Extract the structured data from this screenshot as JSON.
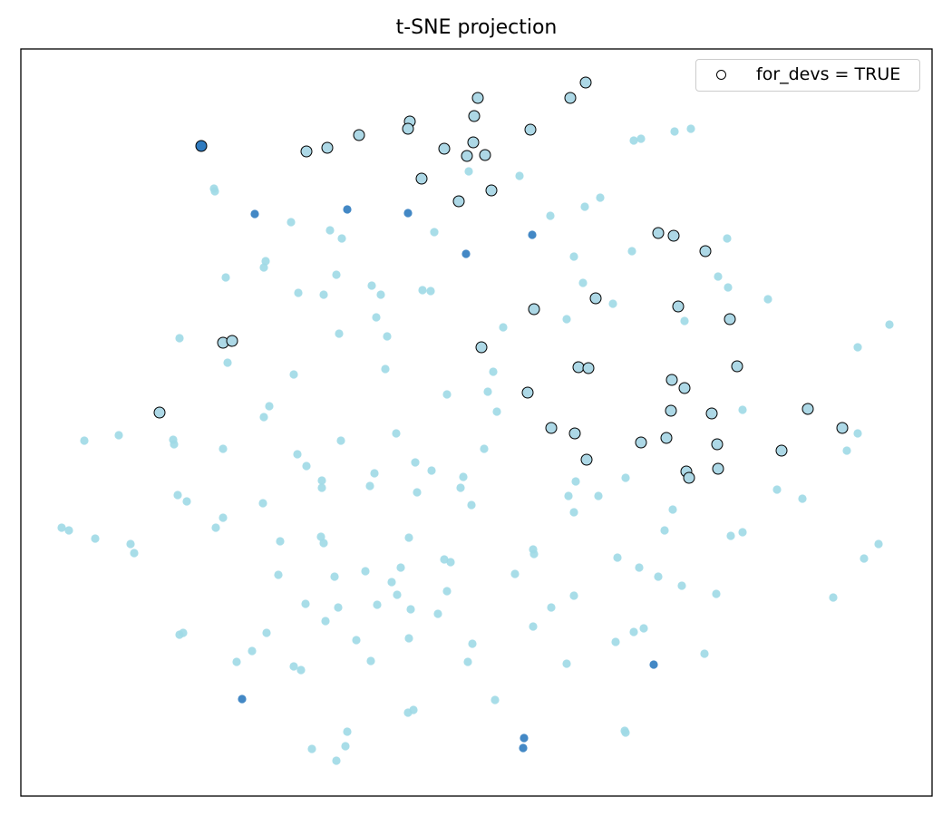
{
  "chart_data": {
    "type": "scatter",
    "title": "t-SNE projection",
    "xlabel": "",
    "ylabel": "",
    "xlim": [
      -50.2,
      50.3
    ],
    "ylim": [
      -41.2,
      41.2
    ],
    "grid": false,
    "ticks_visible": false,
    "legend": {
      "placement": "top-right",
      "entries": [
        "for_devs = TRUE"
      ]
    },
    "colors": {
      "light": "#9ed9e6",
      "dark": "#2f7bbf",
      "highlight_fill": "#add8e6",
      "highlight_edge": "#000000"
    },
    "series": [
      {
        "group": "light",
        "points": [
          [
            17.4,
            31.1
          ],
          [
            18.2,
            31.3
          ],
          [
            21.9,
            32.1
          ],
          [
            23.7,
            32.4
          ],
          [
            -28.9,
            25.8
          ],
          [
            -28.8,
            25.5
          ],
          [
            -0.8,
            27.7
          ],
          [
            4.8,
            27.2
          ],
          [
            13.7,
            24.8
          ],
          [
            12.0,
            23.8
          ],
          [
            8.2,
            22.8
          ],
          [
            -20.4,
            22.1
          ],
          [
            -16.1,
            21.2
          ],
          [
            -14.8,
            20.3
          ],
          [
            -4.6,
            21.0
          ],
          [
            27.7,
            20.3
          ],
          [
            17.2,
            18.9
          ],
          [
            10.8,
            18.3
          ],
          [
            -23.2,
            17.8
          ],
          [
            -23.4,
            17.1
          ],
          [
            -27.6,
            16.0
          ],
          [
            -15.4,
            16.3
          ],
          [
            26.7,
            16.1
          ],
          [
            27.8,
            14.9
          ],
          [
            -11.5,
            15.1
          ],
          [
            -10.5,
            14.1
          ],
          [
            -5.9,
            14.6
          ],
          [
            -5.0,
            14.5
          ],
          [
            -19.6,
            14.3
          ],
          [
            -16.8,
            14.1
          ],
          [
            11.8,
            15.4
          ],
          [
            15.1,
            13.1
          ],
          [
            32.2,
            13.6
          ],
          [
            -11.0,
            11.6
          ],
          [
            10.0,
            11.4
          ],
          [
            23.0,
            11.2
          ],
          [
            3.0,
            10.5
          ],
          [
            45.6,
            10.8
          ],
          [
            -32.7,
            9.3
          ],
          [
            -15.1,
            9.8
          ],
          [
            -9.8,
            9.5
          ],
          [
            42.1,
            8.3
          ],
          [
            -27.4,
            6.6
          ],
          [
            -20.1,
            5.3
          ],
          [
            -10.0,
            5.9
          ],
          [
            1.9,
            5.6
          ],
          [
            -3.2,
            3.1
          ],
          [
            1.3,
            3.4
          ],
          [
            -22.8,
            1.8
          ],
          [
            -23.4,
            0.6
          ],
          [
            2.3,
            1.2
          ],
          [
            29.4,
            1.4
          ],
          [
            -43.2,
            -2.0
          ],
          [
            -39.4,
            -1.4
          ],
          [
            -33.4,
            -1.9
          ],
          [
            -33.3,
            -2.4
          ],
          [
            -14.9,
            -2.0
          ],
          [
            -8.8,
            -1.2
          ],
          [
            42.1,
            -1.2
          ],
          [
            -27.9,
            -2.9
          ],
          [
            -19.7,
            -3.5
          ],
          [
            0.9,
            -2.9
          ],
          [
            40.9,
            -3.1
          ],
          [
            -18.7,
            -4.8
          ],
          [
            -6.7,
            -4.4
          ],
          [
            -4.9,
            -5.3
          ],
          [
            -17.0,
            -6.4
          ],
          [
            -17.0,
            -7.2
          ],
          [
            -11.2,
            -5.6
          ],
          [
            -11.7,
            -7.0
          ],
          [
            -1.4,
            -6.0
          ],
          [
            -1.7,
            -7.2
          ],
          [
            11.0,
            -6.5
          ],
          [
            16.5,
            -6.1
          ],
          [
            33.2,
            -7.4
          ],
          [
            -32.9,
            -8.0
          ],
          [
            -31.9,
            -8.7
          ],
          [
            -6.5,
            -7.7
          ],
          [
            10.2,
            -8.1
          ],
          [
            13.5,
            -8.1
          ],
          [
            36.0,
            -8.4
          ],
          [
            -23.5,
            -8.9
          ],
          [
            -0.5,
            -9.1
          ],
          [
            -27.9,
            -10.5
          ],
          [
            21.7,
            -9.6
          ],
          [
            10.8,
            -9.9
          ],
          [
            -28.7,
            -11.6
          ],
          [
            -45.7,
            -11.6
          ],
          [
            -44.9,
            -11.9
          ],
          [
            -42.0,
            -12.8
          ],
          [
            -38.1,
            -13.4
          ],
          [
            -37.7,
            -14.4
          ],
          [
            -21.6,
            -13.1
          ],
          [
            -17.1,
            -12.6
          ],
          [
            -16.8,
            -13.3
          ],
          [
            -7.4,
            -12.7
          ],
          [
            20.8,
            -11.9
          ],
          [
            28.1,
            -12.5
          ],
          [
            29.4,
            -12.1
          ],
          [
            44.4,
            -13.4
          ],
          [
            6.3,
            -14.0
          ],
          [
            6.4,
            -14.5
          ],
          [
            -3.5,
            -15.1
          ],
          [
            -2.8,
            -15.4
          ],
          [
            15.6,
            -14.9
          ],
          [
            18.0,
            -16.0
          ],
          [
            42.8,
            -15.0
          ],
          [
            -21.8,
            -16.8
          ],
          [
            -12.2,
            -16.4
          ],
          [
            -15.6,
            -17.0
          ],
          [
            -8.3,
            -16.0
          ],
          [
            -9.3,
            -17.6
          ],
          [
            4.3,
            -16.7
          ],
          [
            20.1,
            -17.0
          ],
          [
            22.7,
            -18.0
          ],
          [
            -3.2,
            -18.6
          ],
          [
            -8.7,
            -19.0
          ],
          [
            10.8,
            -19.1
          ],
          [
            26.5,
            -18.9
          ],
          [
            -18.8,
            -20.0
          ],
          [
            -15.2,
            -20.4
          ],
          [
            -10.9,
            -20.1
          ],
          [
            -7.2,
            -20.6
          ],
          [
            -4.2,
            -21.1
          ],
          [
            8.3,
            -20.4
          ],
          [
            39.4,
            -19.3
          ],
          [
            -16.6,
            -21.9
          ],
          [
            6.3,
            -22.5
          ],
          [
            18.5,
            -22.7
          ],
          [
            17.4,
            -23.1
          ],
          [
            -32.7,
            -23.4
          ],
          [
            -32.3,
            -23.2
          ],
          [
            -23.1,
            -23.2
          ],
          [
            -13.2,
            -24.0
          ],
          [
            -7.4,
            -23.8
          ],
          [
            -0.4,
            -24.4
          ],
          [
            15.4,
            -24.2
          ],
          [
            25.2,
            -25.5
          ],
          [
            -24.7,
            -25.2
          ],
          [
            -26.4,
            -26.4
          ],
          [
            -20.1,
            -26.9
          ],
          [
            -19.3,
            -27.3
          ],
          [
            -11.6,
            -26.3
          ],
          [
            -0.9,
            -26.4
          ],
          [
            10.0,
            -26.6
          ],
          [
            2.1,
            -30.6
          ],
          [
            -7.5,
            -32.0
          ],
          [
            -6.9,
            -31.7
          ],
          [
            -14.2,
            -34.1
          ],
          [
            16.4,
            -34.0
          ],
          [
            16.5,
            -34.2
          ],
          [
            -18.1,
            -36.0
          ],
          [
            -14.4,
            -35.7
          ],
          [
            -15.4,
            -37.3
          ]
        ]
      },
      {
        "group": "dark",
        "points": [
          [
            -30.3,
            30.5
          ],
          [
            -24.4,
            23.0
          ],
          [
            -14.2,
            23.5
          ],
          [
            -7.5,
            23.1
          ],
          [
            -1.1,
            18.6
          ],
          [
            6.2,
            20.7
          ],
          [
            19.6,
            -26.7
          ],
          [
            -25.8,
            -30.5
          ],
          [
            5.3,
            -34.8
          ],
          [
            5.2,
            -35.9
          ]
        ]
      },
      {
        "group": "for_devs",
        "name": "for_devs = TRUE",
        "points": [
          [
            12.1,
            37.5,
            "light"
          ],
          [
            0.2,
            35.8,
            "light"
          ],
          [
            10.4,
            35.8,
            "light"
          ],
          [
            -0.2,
            33.8,
            "light"
          ],
          [
            -7.3,
            33.2,
            "light"
          ],
          [
            -7.5,
            32.4,
            "light"
          ],
          [
            6.0,
            32.3,
            "light"
          ],
          [
            -12.9,
            31.7,
            "light"
          ],
          [
            -0.3,
            30.9,
            "light"
          ],
          [
            -18.7,
            29.9,
            "light"
          ],
          [
            -16.4,
            30.3,
            "light"
          ],
          [
            -3.5,
            30.2,
            "light"
          ],
          [
            -1.0,
            29.4,
            "light"
          ],
          [
            1.0,
            29.5,
            "light"
          ],
          [
            -6.0,
            26.9,
            "light"
          ],
          [
            1.7,
            25.6,
            "light"
          ],
          [
            -1.9,
            24.4,
            "light"
          ],
          [
            20.1,
            20.9,
            "light"
          ],
          [
            21.8,
            20.6,
            "light"
          ],
          [
            25.3,
            18.9,
            "light"
          ],
          [
            13.2,
            13.7,
            "light"
          ],
          [
            6.4,
            12.5,
            "light"
          ],
          [
            22.3,
            12.8,
            "light"
          ],
          [
            28.0,
            11.4,
            "light"
          ],
          [
            -27.9,
            8.8,
            "light"
          ],
          [
            -26.9,
            9.0,
            "light"
          ],
          [
            0.6,
            8.3,
            "light"
          ],
          [
            11.3,
            6.1,
            "light"
          ],
          [
            12.4,
            6.0,
            "light"
          ],
          [
            28.8,
            6.2,
            "light"
          ],
          [
            21.6,
            4.7,
            "light"
          ],
          [
            23.0,
            3.8,
            "light"
          ],
          [
            5.7,
            3.3,
            "light"
          ],
          [
            -34.9,
            1.1,
            "light"
          ],
          [
            21.5,
            1.3,
            "light"
          ],
          [
            26.0,
            1.0,
            "light"
          ],
          [
            36.6,
            1.5,
            "light"
          ],
          [
            8.3,
            -0.6,
            "light"
          ],
          [
            10.9,
            -1.2,
            "light"
          ],
          [
            40.4,
            -0.6,
            "light"
          ],
          [
            18.2,
            -2.2,
            "light"
          ],
          [
            21.0,
            -1.7,
            "light"
          ],
          [
            26.6,
            -2.4,
            "light"
          ],
          [
            33.7,
            -3.1,
            "light"
          ],
          [
            12.2,
            -4.1,
            "light"
          ],
          [
            23.2,
            -5.4,
            "light"
          ],
          [
            26.7,
            -5.1,
            "light"
          ],
          [
            23.5,
            -6.1,
            "light"
          ],
          [
            -30.3,
            30.5,
            "dark"
          ]
        ]
      }
    ]
  }
}
